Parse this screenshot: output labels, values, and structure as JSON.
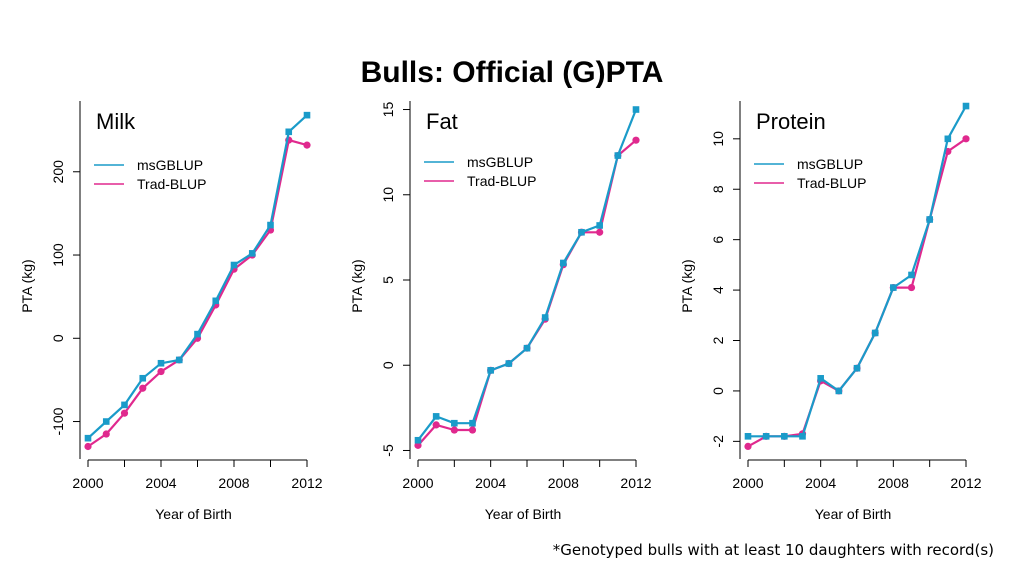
{
  "slide": {
    "title": "Bulls: Official (G)PTA",
    "footnote": "*Genotyped bulls with at least 10 daughters with record(s)"
  },
  "colors": {
    "msGBLUP": "#1a9bc9",
    "Trad-BLUP": "#e0298e",
    "axis": "#000000"
  },
  "chart_data": [
    {
      "type": "line",
      "title": "Milk",
      "xlabel": "Year of Birth",
      "ylabel": "PTA (kg)",
      "xlim": [
        2000,
        2012
      ],
      "ylim": [
        -145,
        285
      ],
      "xticks": [
        2000,
        2004,
        2008,
        2012
      ],
      "yticks": [
        -100,
        0,
        100,
        200
      ],
      "legend_position": "top-left",
      "x": [
        2000,
        2001,
        2002,
        2003,
        2004,
        2005,
        2006,
        2007,
        2008,
        2009,
        2010,
        2011,
        2012
      ],
      "series": [
        {
          "name": "msGBLUP",
          "marker": "square",
          "values": [
            -120,
            -100,
            -80,
            -48,
            -30,
            -26,
            5,
            45,
            88,
            102,
            136,
            248,
            268
          ]
        },
        {
          "name": "Trad-BLUP",
          "marker": "circle",
          "values": [
            -130,
            -115,
            -90,
            -60,
            -40,
            -26,
            0,
            40,
            83,
            100,
            130,
            238,
            232
          ]
        }
      ]
    },
    {
      "type": "line",
      "title": "Fat",
      "xlabel": "Year of Birth",
      "ylabel": "PTA (kg)",
      "xlim": [
        2000,
        2012
      ],
      "ylim": [
        -5.5,
        15.5
      ],
      "xticks": [
        2000,
        2004,
        2008,
        2012
      ],
      "yticks": [
        -5,
        0,
        5,
        10,
        15
      ],
      "legend_position": "top-left",
      "x": [
        2000,
        2001,
        2002,
        2003,
        2004,
        2005,
        2006,
        2007,
        2008,
        2009,
        2010,
        2011,
        2012
      ],
      "series": [
        {
          "name": "msGBLUP",
          "marker": "square",
          "values": [
            -4.4,
            -3.0,
            -3.4,
            -3.4,
            -0.3,
            0.1,
            1.0,
            2.8,
            6.0,
            7.8,
            8.2,
            12.3,
            15.0
          ]
        },
        {
          "name": "Trad-BLUP",
          "marker": "circle",
          "values": [
            -4.7,
            -3.5,
            -3.8,
            -3.8,
            -0.3,
            0.1,
            1.0,
            2.7,
            5.9,
            7.8,
            7.8,
            12.3,
            13.2
          ]
        }
      ]
    },
    {
      "type": "line",
      "title": "Protein",
      "xlabel": "Year of Birth",
      "ylabel": "PTA (kg)",
      "xlim": [
        2000,
        2012
      ],
      "ylim": [
        -2.7,
        11.5
      ],
      "xticks": [
        2000,
        2004,
        2008,
        2012
      ],
      "yticks": [
        -2,
        0,
        2,
        4,
        6,
        8,
        10
      ],
      "legend_position": "top-left",
      "x": [
        2000,
        2001,
        2002,
        2003,
        2004,
        2005,
        2006,
        2007,
        2008,
        2009,
        2010,
        2011,
        2012
      ],
      "series": [
        {
          "name": "msGBLUP",
          "marker": "square",
          "values": [
            -1.8,
            -1.8,
            -1.8,
            -1.8,
            0.5,
            0.0,
            0.9,
            2.3,
            4.1,
            4.6,
            6.8,
            10.0,
            11.3
          ]
        },
        {
          "name": "Trad-BLUP",
          "marker": "circle",
          "values": [
            -2.2,
            -1.8,
            -1.8,
            -1.7,
            0.4,
            0.0,
            0.9,
            2.3,
            4.1,
            4.1,
            6.8,
            9.5,
            10.0
          ]
        }
      ]
    }
  ]
}
